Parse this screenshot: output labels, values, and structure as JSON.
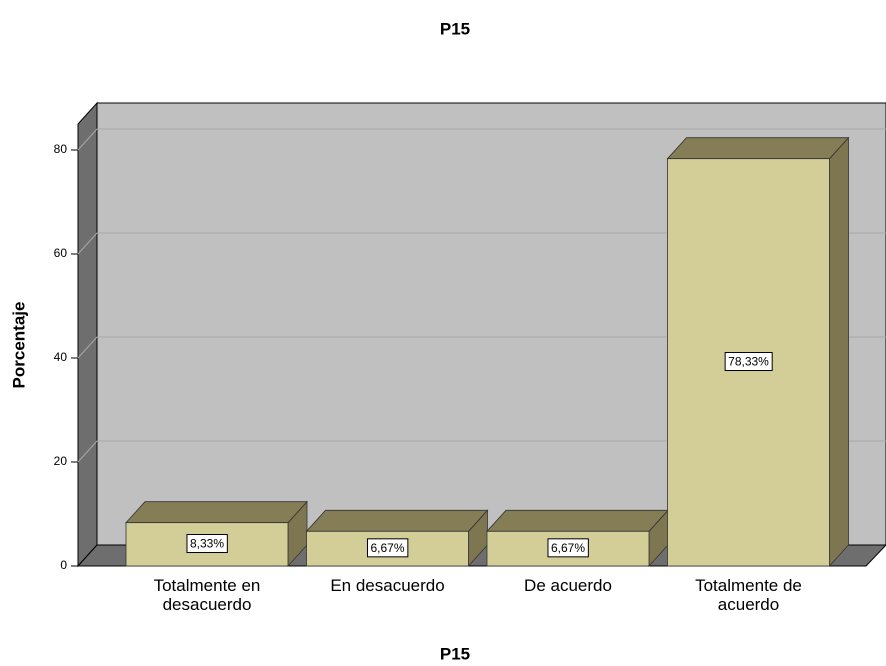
{
  "chart_data": {
    "type": "bar3d",
    "title": "P15",
    "xlabel": "P15",
    "ylabel": "Porcentaje",
    "categories": [
      "Totalmente en desacuerdo",
      "En desacuerdo",
      "De acuerdo",
      "Totalmente de acuerdo"
    ],
    "values": [
      8.33,
      6.67,
      6.67,
      78.33
    ],
    "value_labels": [
      "8,33%",
      "6,67%",
      "6,67%",
      "78,33%"
    ],
    "color": "#d3ce98",
    "ylim": [
      0,
      85
    ],
    "yticks": [
      0,
      20,
      40,
      60,
      80
    ],
    "grid": true
  }
}
